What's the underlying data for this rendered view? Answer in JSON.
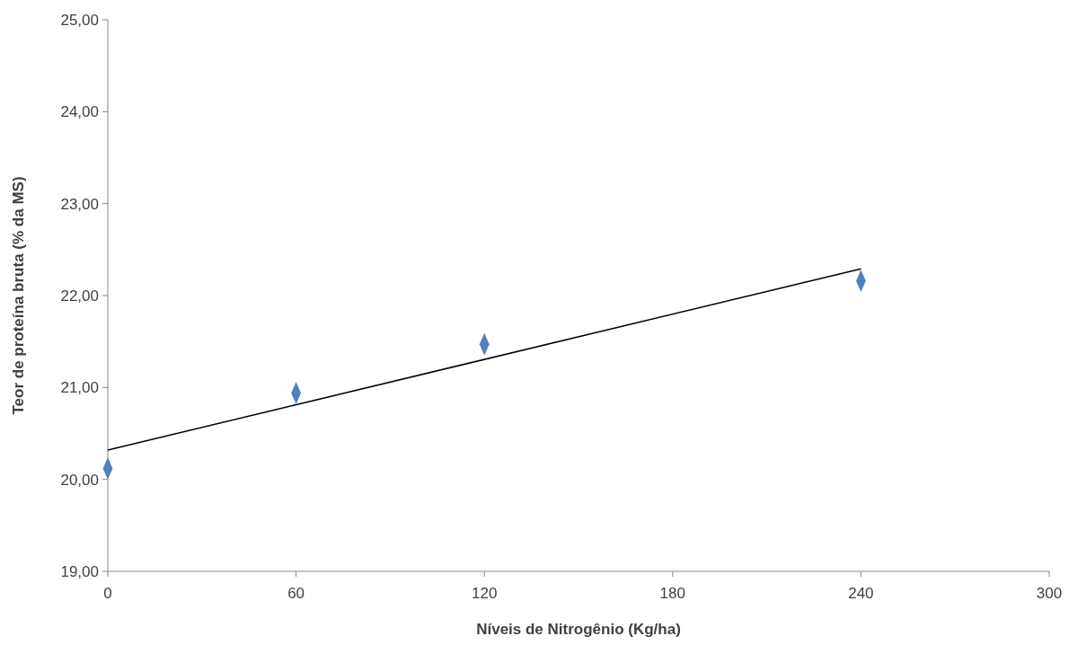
{
  "chart_data": {
    "type": "scatter",
    "xlabel": "Níveis de Nitrogênio (Kg/ha)",
    "ylabel": "Teor de proteína bruta (% da MS)",
    "xlim": [
      0,
      300
    ],
    "xticks": [
      0,
      60,
      120,
      180,
      240,
      300
    ],
    "ylim": [
      19,
      25
    ],
    "yticks": [
      {
        "value": 19,
        "label": "19,00"
      },
      {
        "value": 20,
        "label": "20,00"
      },
      {
        "value": 21,
        "label": "21,00"
      },
      {
        "value": 22,
        "label": "22,00"
      },
      {
        "value": 23,
        "label": "23,00"
      },
      {
        "value": 24,
        "label": "24,00"
      },
      {
        "value": 25,
        "label": "25,00"
      }
    ],
    "grid": false,
    "series": [
      {
        "color": "#4f81bd",
        "marker": "diamond",
        "x": [
          0,
          60,
          120,
          240
        ],
        "values": [
          20.12,
          20.94,
          21.47,
          22.16
        ]
      },
      {
        "type": "line",
        "color": "#000000",
        "marker": "none",
        "line_style": "solid",
        "x": [
          0,
          240
        ],
        "values": [
          20.32,
          22.29
        ]
      }
    ]
  }
}
